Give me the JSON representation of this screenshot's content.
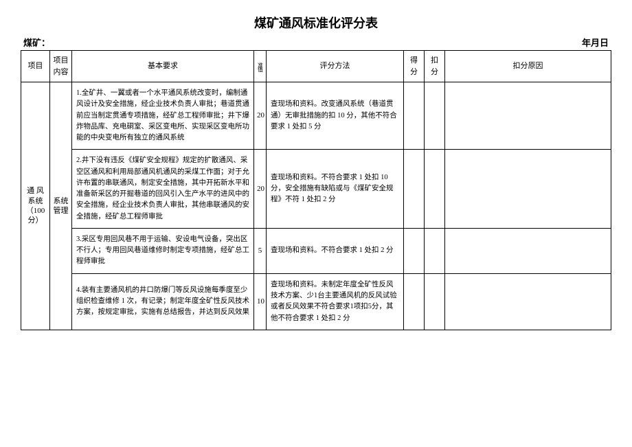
{
  "title": "煤矿通风标准化评分表",
  "header_left": "煤矿：",
  "header_right": "年月日",
  "columns": {
    "project": "项目",
    "content": "项目内容",
    "requirement": "基本要求",
    "std_value": "准值",
    "method": "评分方法",
    "score": "得分",
    "deduct": "扣分",
    "reason": "扣分原因"
  },
  "project_label": "通 风系统（100分）",
  "content_label": "系统管理",
  "rows": [
    {
      "req": "1.全矿井、一翼或者一个水平通风系统改变时，编制通风设计及安全措施，经企业技术负责人审批；巷道贯通前应当制定贯通专项措施，经矿总工程师审批；井下爆炸物品库、充电硐室、采区变电所、实现采区变电所功能的中央变电所有独立的通风系统",
      "std": "20",
      "method": "查现场和资料。改变通风系统（巷道贯通）无审批措施的扣 10 分，其他不符合要求 1 处扣 5 分"
    },
    {
      "req": "2.井下没有违反《煤矿安全规程》规定的扩散通风、采空区通风和利用局部通风机通风的采煤工作面；对于允许布置的串联通风，制定安全措施，其中开拓新水平和准备新采区的开掘巷道的回风引入生产水平的进风中的安全措施，经企业技术负责人审批，其他串联通风的安全措施，经矿总工程师审批",
      "std": "20",
      "method": "查现场和资料。不符合要求 1 处扣 10分，安全措施有缺陷或与《煤矿安全规程》不符 1 处扣 2 分"
    },
    {
      "req": "3.采区专用回风巷不用于运输、安设电气设备，突出区不行人；专用回风巷道维修时制定专项措施，经矿总工程师审批",
      "std": "5",
      "method": "查现场和资料。不符合要求 1 处扣 2 分"
    },
    {
      "req": "4.装有主要通风机的井口防爆门等反风设施每季度至少组织检查维修 1 次，有记录；制定年度全矿性反风技术方案，按规定审批，实施有总结报告，并达到反风效果",
      "std": "10",
      "method": "查现场和资料。未制定年度全矿性反风技术方案、少1台主要通风机的反风试验或者反风效果不符合要求1项扣5分，其他不符合要求 1 处扣 2 分"
    }
  ]
}
